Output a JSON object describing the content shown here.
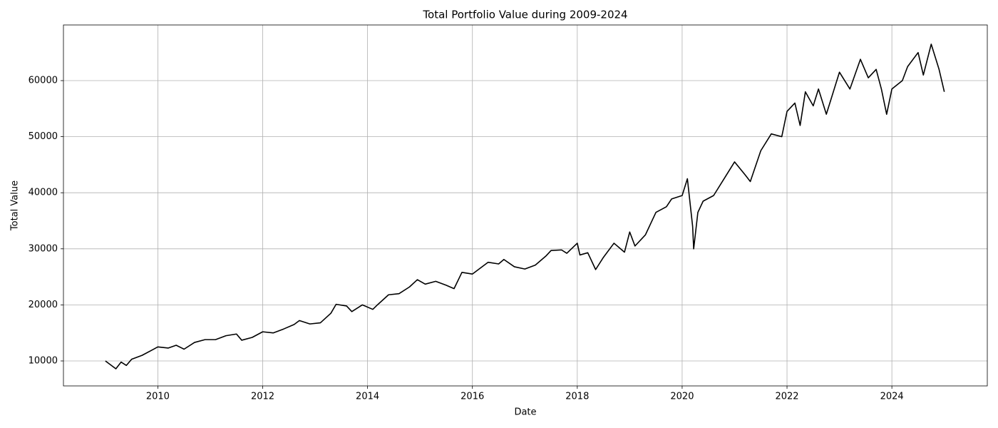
{
  "chart_data": {
    "type": "line",
    "title": "Total Portfolio Value during 2009-2024",
    "x_label": "Date",
    "y_label": "Total Value",
    "xlim": [
      2008.2,
      2025.82
    ],
    "ylim": [
      5547,
      69924
    ],
    "xticks": [
      2010,
      2012,
      2014,
      2016,
      2018,
      2020,
      2022,
      2024
    ],
    "yticks": [
      10000,
      20000,
      30000,
      40000,
      50000,
      60000
    ],
    "grid": true,
    "x": [
      2009.0,
      2009.1,
      2009.2,
      2009.3,
      2009.4,
      2009.5,
      2009.7,
      2009.9,
      2010.0,
      2010.2,
      2010.35,
      2010.5,
      2010.7,
      2010.9,
      2011.1,
      2011.3,
      2011.5,
      2011.6,
      2011.8,
      2012.0,
      2012.2,
      2012.4,
      2012.6,
      2012.7,
      2012.9,
      2013.1,
      2013.3,
      2013.4,
      2013.6,
      2013.7,
      2013.9,
      2014.1,
      2014.2,
      2014.4,
      2014.6,
      2014.8,
      2014.95,
      2015.1,
      2015.3,
      2015.5,
      2015.65,
      2015.8,
      2016.0,
      2016.1,
      2016.3,
      2016.5,
      2016.6,
      2016.8,
      2017.0,
      2017.2,
      2017.4,
      2017.5,
      2017.7,
      2017.8,
      2018.0,
      2018.05,
      2018.2,
      2018.35,
      2018.5,
      2018.7,
      2018.9,
      2019.0,
      2019.1,
      2019.3,
      2019.5,
      2019.7,
      2019.8,
      2020.0,
      2020.1,
      2020.2,
      2020.22,
      2020.3,
      2020.4,
      2020.6,
      2020.8,
      2021.0,
      2021.2,
      2021.3,
      2021.5,
      2021.7,
      2021.9,
      2022.0,
      2022.15,
      2022.25,
      2022.35,
      2022.5,
      2022.6,
      2022.75,
      2022.85,
      2023.0,
      2023.2,
      2023.4,
      2023.55,
      2023.7,
      2023.8,
      2023.9,
      2024.0,
      2024.2,
      2024.3,
      2024.5,
      2024.6,
      2024.75,
      2024.9,
      2025.0
    ],
    "series": [
      {
        "name": "Total Value",
        "color": "#000000",
        "values": [
          10000,
          9300,
          8600,
          9800,
          9200,
          10300,
          11000,
          12000,
          12500,
          12300,
          12800,
          12100,
          13300,
          13800,
          13800,
          14500,
          14800,
          13700,
          14200,
          15200,
          15000,
          15700,
          16500,
          17200,
          16600,
          16800,
          18500,
          20100,
          19800,
          18800,
          20000,
          19200,
          20100,
          21800,
          22000,
          23200,
          24500,
          23700,
          24200,
          23500,
          22900,
          25800,
          25500,
          26200,
          27600,
          27300,
          28100,
          26800,
          26400,
          27100,
          28700,
          29700,
          29800,
          29200,
          31000,
          28900,
          29300,
          26300,
          28500,
          31000,
          29400,
          33000,
          30500,
          32500,
          36500,
          37500,
          38900,
          39500,
          42500,
          34000,
          30000,
          36500,
          38500,
          39500,
          42500,
          45500,
          43200,
          42000,
          47500,
          50500,
          50000,
          54500,
          56000,
          52000,
          58000,
          55500,
          58500,
          54000,
          57000,
          61500,
          58500,
          63800,
          60500,
          62000,
          58500,
          54000,
          58500,
          60000,
          62500,
          65000,
          61000,
          66500,
          62000,
          58000
        ]
      }
    ]
  }
}
